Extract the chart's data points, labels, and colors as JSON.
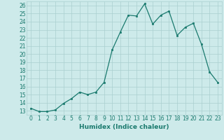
{
  "x": [
    0,
    1,
    2,
    3,
    4,
    5,
    6,
    7,
    8,
    9,
    10,
    11,
    12,
    13,
    14,
    15,
    16,
    17,
    18,
    19,
    20,
    21,
    22,
    23
  ],
  "y": [
    13.3,
    12.9,
    12.9,
    13.1,
    13.9,
    14.5,
    15.3,
    15.0,
    15.3,
    16.5,
    20.5,
    22.7,
    24.8,
    24.7,
    26.2,
    23.7,
    24.8,
    25.3,
    22.3,
    23.3,
    23.8,
    21.2,
    17.8,
    16.5
  ],
  "line_color": "#1a7a6e",
  "marker": "s",
  "marker_size": 2,
  "bg_color": "#cdeaea",
  "grid_color": "#aacfcf",
  "xlabel": "Humidex (Indice chaleur)",
  "ylim": [
    12.5,
    26.5
  ],
  "xlim": [
    -0.5,
    23.5
  ],
  "yticks": [
    13,
    14,
    15,
    16,
    17,
    18,
    19,
    20,
    21,
    22,
    23,
    24,
    25,
    26
  ],
  "xticks": [
    0,
    1,
    2,
    3,
    4,
    5,
    6,
    7,
    8,
    9,
    10,
    11,
    12,
    13,
    14,
    15,
    16,
    17,
    18,
    19,
    20,
    21,
    22,
    23
  ],
  "tick_fontsize": 5.5,
  "xlabel_fontsize": 6.5,
  "xlabel_bold": true
}
